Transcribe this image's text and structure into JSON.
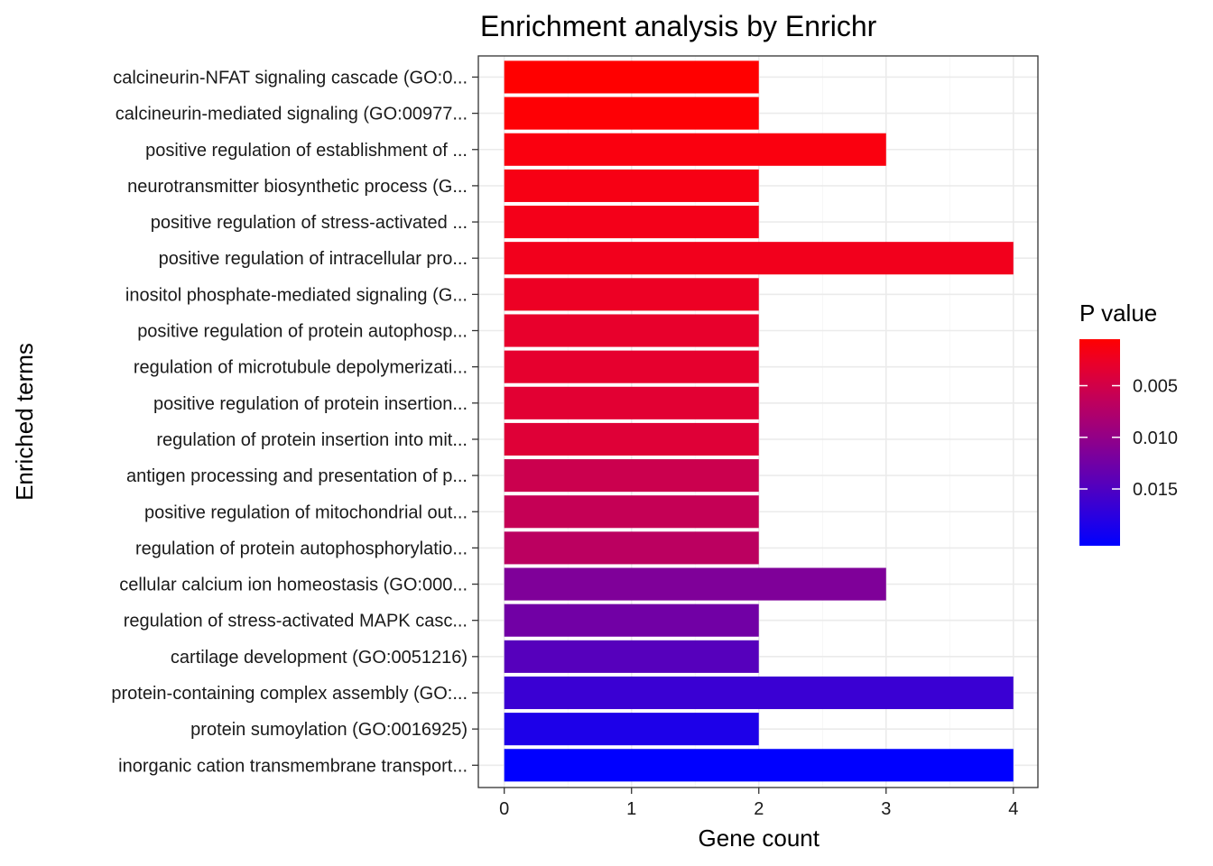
{
  "chart_data": {
    "type": "bar",
    "orientation": "horizontal",
    "title": "Enrichment analysis by Enrichr",
    "xlabel": "Gene count",
    "ylabel": "Enriched terms",
    "xlim": [
      0,
      4
    ],
    "x_ticks": [
      "0",
      "1",
      "2",
      "3",
      "4"
    ],
    "categories": [
      "calcineurin-NFAT signaling cascade (GO:0...",
      "calcineurin-mediated signaling (GO:00977...",
      "positive regulation of establishment of ...",
      "neurotransmitter biosynthetic process (G...",
      "positive regulation of stress-activated ...",
      "positive regulation of intracellular pro...",
      "inositol phosphate-mediated signaling (G...",
      "positive regulation of protein autophosp...",
      "regulation of microtubule depolymerizati...",
      "positive regulation of protein insertion...",
      "regulation of protein insertion into mit...",
      "antigen processing and presentation of p...",
      "positive regulation of mitochondrial out...",
      "regulation of protein autophosphorylatio...",
      "cellular calcium ion homeostasis (GO:000...",
      "regulation of stress-activated MAPK casc...",
      "cartilage development (GO:0051216)",
      "protein-containing complex assembly (GO:...",
      "protein sumoylation (GO:0016925)",
      "inorganic cation transmembrane transport..."
    ],
    "values": [
      2,
      2,
      3,
      2,
      2,
      4,
      2,
      2,
      2,
      2,
      2,
      2,
      2,
      2,
      3,
      2,
      2,
      4,
      2,
      4
    ],
    "p_values": [
      0.0005,
      0.0007,
      0.0012,
      0.0015,
      0.0018,
      0.002,
      0.0025,
      0.003,
      0.0032,
      0.0035,
      0.0038,
      0.0055,
      0.006,
      0.0068,
      0.0115,
      0.0125,
      0.0145,
      0.0165,
      0.0185,
      0.0205
    ],
    "legend": {
      "title": "P value",
      "ticks": [
        0.005,
        0.01,
        0.015
      ],
      "tick_labels": [
        "0.005",
        "0.010",
        "0.015"
      ],
      "range": [
        0.0005,
        0.0205
      ],
      "colors": [
        "#ff0000",
        "#0000ff"
      ],
      "reversed": true,
      "placement": "right"
    }
  }
}
